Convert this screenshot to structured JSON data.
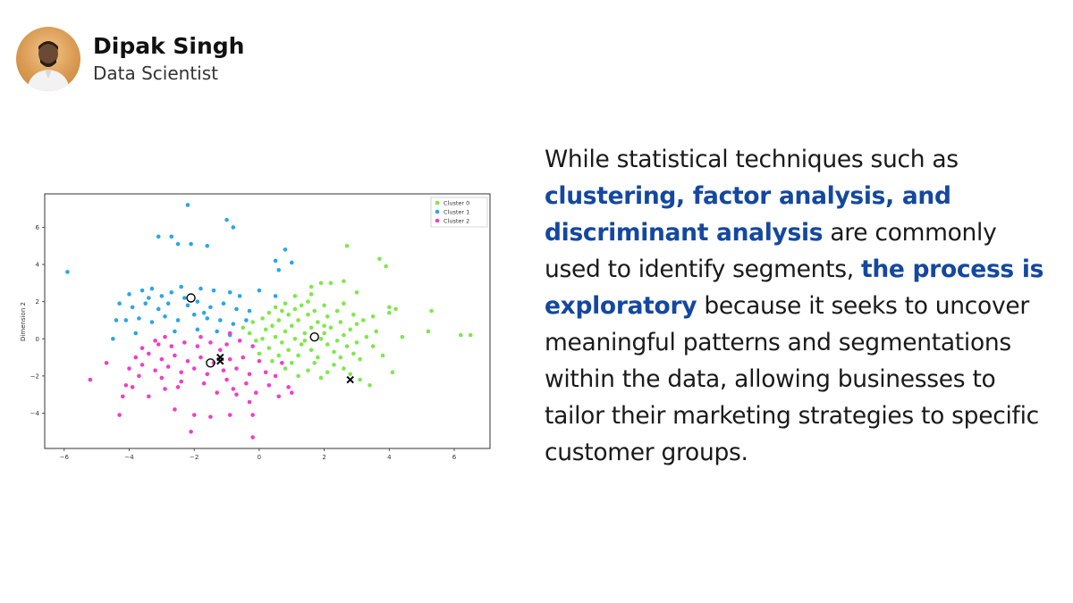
{
  "author": {
    "name": "Dipak Singh",
    "role": "Data Scientist"
  },
  "text": {
    "part1": "While statistical techniques such as ",
    "highlight1": "clustering, factor analysis, and discriminant analysis",
    "part2": " are commonly used to identify segments, ",
    "highlight2": "the process is exploratory",
    "part3": " because it seeks to uncover meaningful patterns and segmentations within the data, allowing businesses to tailor their marketing strategies to specific customer groups."
  },
  "colors": {
    "highlight": "#1448a0",
    "cluster0": "#7ee84a",
    "cluster1": "#2aa6ea",
    "cluster2": "#f03ec8"
  },
  "chart_data": {
    "type": "scatter",
    "xlabel": "",
    "ylabel": "Dimension 2",
    "xlim": [
      -6.6,
      7.1
    ],
    "ylim": [
      -5.9,
      7.8
    ],
    "xticks": [
      -6,
      -4,
      -2,
      0,
      2,
      4,
      6
    ],
    "yticks": [
      -4,
      -2,
      0,
      2,
      4,
      6
    ],
    "grid": false,
    "legend": "top-right",
    "series": [
      {
        "name": "Cluster 0",
        "color": "#7ee84a",
        "points": [
          [
            2.7,
            5.0
          ],
          [
            3.7,
            4.3
          ],
          [
            3.9,
            3.9
          ],
          [
            2.2,
            3.0
          ],
          [
            2.6,
            3.1
          ],
          [
            1.6,
            2.8
          ],
          [
            1.9,
            3.0
          ],
          [
            3.0,
            2.5
          ],
          [
            2.0,
            1.8
          ],
          [
            4.0,
            1.7
          ],
          [
            4.0,
            1.4
          ],
          [
            4.2,
            1.6
          ],
          [
            3.5,
            1.2
          ],
          [
            5.3,
            1.5
          ],
          [
            5.2,
            0.4
          ],
          [
            4.4,
            0.1
          ],
          [
            6.2,
            0.2
          ],
          [
            6.5,
            0.2
          ],
          [
            1.1,
            2.3
          ],
          [
            1.5,
            2.0
          ],
          [
            0.8,
            1.9
          ],
          [
            1.3,
            1.8
          ],
          [
            0.5,
            1.7
          ],
          [
            1.1,
            1.6
          ],
          [
            1.7,
            1.5
          ],
          [
            2.4,
            1.5
          ],
          [
            2.9,
            1.3
          ],
          [
            0.3,
            1.4
          ],
          [
            0.9,
            1.3
          ],
          [
            1.5,
            1.3
          ],
          [
            2.1,
            1.2
          ],
          [
            3.2,
            1.0
          ],
          [
            0.1,
            1.1
          ],
          [
            0.6,
            1.0
          ],
          [
            1.2,
            1.0
          ],
          [
            1.8,
            0.9
          ],
          [
            2.5,
            0.9
          ],
          [
            3.0,
            0.8
          ],
          [
            -0.2,
            0.9
          ],
          [
            0.4,
            0.7
          ],
          [
            1.0,
            0.7
          ],
          [
            1.6,
            0.6
          ],
          [
            2.2,
            0.6
          ],
          [
            2.8,
            0.5
          ],
          [
            3.6,
            0.4
          ],
          [
            -0.5,
            0.6
          ],
          [
            0.2,
            0.5
          ],
          [
            0.8,
            0.4
          ],
          [
            1.4,
            0.3
          ],
          [
            2.0,
            0.3
          ],
          [
            2.6,
            0.2
          ],
          [
            3.3,
            0.1
          ],
          [
            -0.3,
            0.3
          ],
          [
            0.5,
            0.1
          ],
          [
            1.1,
            0.0
          ],
          [
            1.9,
            0.0
          ],
          [
            2.4,
            -0.1
          ],
          [
            3.0,
            -0.2
          ],
          [
            -0.1,
            -0.1
          ],
          [
            0.7,
            -0.2
          ],
          [
            1.3,
            -0.3
          ],
          [
            2.1,
            -0.3
          ],
          [
            2.7,
            -0.4
          ],
          [
            3.5,
            -0.4
          ],
          [
            0.3,
            -0.5
          ],
          [
            0.9,
            -0.6
          ],
          [
            1.6,
            -0.6
          ],
          [
            2.3,
            -0.7
          ],
          [
            2.9,
            -0.8
          ],
          [
            0.0,
            -0.8
          ],
          [
            0.6,
            -0.9
          ],
          [
            1.2,
            -0.9
          ],
          [
            1.8,
            -1.0
          ],
          [
            2.5,
            -1.0
          ],
          [
            3.1,
            -1.1
          ],
          [
            0.4,
            -1.2
          ],
          [
            1.0,
            -1.3
          ],
          [
            1.7,
            -1.3
          ],
          [
            2.3,
            -1.4
          ],
          [
            0.8,
            -1.6
          ],
          [
            1.5,
            -1.7
          ],
          [
            2.1,
            -1.8
          ],
          [
            2.8,
            -1.9
          ],
          [
            1.2,
            -2.0
          ],
          [
            1.9,
            -2.1
          ],
          [
            3.4,
            -2.5
          ],
          [
            3.1,
            -2.2
          ],
          [
            2.6,
            -1.6
          ],
          [
            3.8,
            -0.9
          ],
          [
            4.1,
            -1.8
          ],
          [
            0.1,
            0.0
          ],
          [
            1.4,
            -0.1
          ],
          [
            2.0,
            0.7
          ],
          [
            0.7,
            1.5
          ],
          [
            2.6,
            1.9
          ],
          [
            1.6,
            2.4
          ]
        ]
      },
      {
        "name": "Cluster 1",
        "color": "#2aa6ea",
        "points": [
          [
            -2.2,
            7.2
          ],
          [
            -1.0,
            6.4
          ],
          [
            -0.8,
            6.0
          ],
          [
            -3.1,
            5.5
          ],
          [
            -2.7,
            5.5
          ],
          [
            -2.5,
            5.1
          ],
          [
            -2.1,
            5.1
          ],
          [
            -1.6,
            5.0
          ],
          [
            -5.9,
            3.6
          ],
          [
            0.8,
            4.8
          ],
          [
            0.5,
            4.2
          ],
          [
            1.0,
            4.1
          ],
          [
            0.6,
            3.7
          ],
          [
            -4.0,
            2.4
          ],
          [
            -3.6,
            2.6
          ],
          [
            -3.3,
            2.7
          ],
          [
            -3.0,
            2.3
          ],
          [
            -2.7,
            2.5
          ],
          [
            -2.4,
            2.8
          ],
          [
            -1.8,
            2.7
          ],
          [
            -1.4,
            2.6
          ],
          [
            -0.9,
            2.5
          ],
          [
            -0.6,
            2.3
          ],
          [
            0.0,
            2.6
          ],
          [
            0.5,
            2.3
          ],
          [
            -4.3,
            1.9
          ],
          [
            -3.9,
            1.7
          ],
          [
            -3.5,
            1.9
          ],
          [
            -3.1,
            1.6
          ],
          [
            -2.8,
            1.9
          ],
          [
            -2.2,
            1.8
          ],
          [
            -1.9,
            2.0
          ],
          [
            -1.5,
            1.7
          ],
          [
            -1.1,
            1.9
          ],
          [
            -0.7,
            1.6
          ],
          [
            -0.3,
            1.5
          ],
          [
            -4.1,
            1.0
          ],
          [
            -3.7,
            1.1
          ],
          [
            -3.3,
            0.9
          ],
          [
            -2.9,
            1.2
          ],
          [
            -2.5,
            1.0
          ],
          [
            -2.0,
            1.3
          ],
          [
            -1.6,
            1.1
          ],
          [
            -1.2,
            1.0
          ],
          [
            -0.8,
            0.8
          ],
          [
            -0.4,
            1.0
          ],
          [
            -4.5,
            0.0
          ],
          [
            -3.8,
            0.3
          ],
          [
            -2.6,
            0.4
          ],
          [
            -1.9,
            0.5
          ],
          [
            -1.3,
            0.4
          ],
          [
            -0.9,
            0.2
          ],
          [
            -3.4,
            2.2
          ],
          [
            -2.3,
            2.2
          ],
          [
            -1.7,
            1.4
          ],
          [
            -4.4,
            1.0
          ]
        ]
      },
      {
        "name": "Cluster 2",
        "color": "#f03ec8",
        "points": [
          [
            -5.2,
            -2.2
          ],
          [
            -4.1,
            -2.5
          ],
          [
            -3.9,
            -2.6
          ],
          [
            -4.2,
            -3.1
          ],
          [
            -3.4,
            -3.1
          ],
          [
            -4.3,
            -4.1
          ],
          [
            -2.6,
            -3.8
          ],
          [
            -2.0,
            -4.1
          ],
          [
            -2.1,
            -5.0
          ],
          [
            -1.5,
            -4.2
          ],
          [
            -0.9,
            -4.1
          ],
          [
            -0.2,
            -5.3
          ],
          [
            -0.2,
            -4.1
          ],
          [
            -3.6,
            -0.5
          ],
          [
            -3.1,
            -0.3
          ],
          [
            -2.7,
            -0.4
          ],
          [
            -2.3,
            -0.2
          ],
          [
            -1.9,
            -0.4
          ],
          [
            -1.5,
            -0.2
          ],
          [
            -1.0,
            -0.3
          ],
          [
            -0.6,
            -0.1
          ],
          [
            -0.2,
            -0.4
          ],
          [
            -3.8,
            -1.0
          ],
          [
            -3.4,
            -0.8
          ],
          [
            -3.0,
            -1.1
          ],
          [
            -2.6,
            -0.9
          ],
          [
            -2.2,
            -1.2
          ],
          [
            -1.8,
            -1.0
          ],
          [
            -1.4,
            -1.3
          ],
          [
            -0.9,
            -1.1
          ],
          [
            -0.5,
            -1.0
          ],
          [
            0.0,
            -1.2
          ],
          [
            -4.0,
            -1.6
          ],
          [
            -3.6,
            -1.4
          ],
          [
            -3.2,
            -1.7
          ],
          [
            -2.8,
            -1.5
          ],
          [
            -2.4,
            -1.8
          ],
          [
            -2.0,
            -1.6
          ],
          [
            -1.6,
            -1.9
          ],
          [
            -1.1,
            -1.7
          ],
          [
            -0.7,
            -1.6
          ],
          [
            -0.3,
            -1.9
          ],
          [
            0.2,
            -1.8
          ],
          [
            -3.7,
            -2.0
          ],
          [
            -3.0,
            -2.1
          ],
          [
            -2.4,
            -2.3
          ],
          [
            -1.7,
            -2.4
          ],
          [
            -1.0,
            -2.2
          ],
          [
            -0.4,
            -2.4
          ],
          [
            0.3,
            -2.5
          ],
          [
            0.9,
            -2.6
          ],
          [
            -0.1,
            -2.9
          ],
          [
            -0.7,
            -3.0
          ],
          [
            -1.3,
            -2.9
          ],
          [
            0.6,
            -3.1
          ],
          [
            1.0,
            -2.9
          ],
          [
            -2.9,
            -2.7
          ],
          [
            -0.9,
            0.3
          ],
          [
            -1.8,
            0.1
          ],
          [
            -2.9,
            0.1
          ],
          [
            -0.3,
            -3.4
          ],
          [
            -4.7,
            -1.3
          ],
          [
            -3.2,
            -0.1
          ],
          [
            -1.2,
            -0.6
          ],
          [
            0.5,
            -2.0
          ],
          [
            0.7,
            -1.3
          ],
          [
            -0.8,
            -2.7
          ],
          [
            -2.5,
            -2.6
          ]
        ]
      }
    ],
    "circle_markers": [
      [
        -2.1,
        2.2
      ],
      [
        -1.5,
        -1.3
      ],
      [
        1.7,
        0.1
      ]
    ],
    "cross_markers": [
      [
        -1.2,
        -1.0
      ],
      [
        -1.2,
        -1.2
      ],
      [
        2.8,
        -2.2
      ]
    ]
  }
}
